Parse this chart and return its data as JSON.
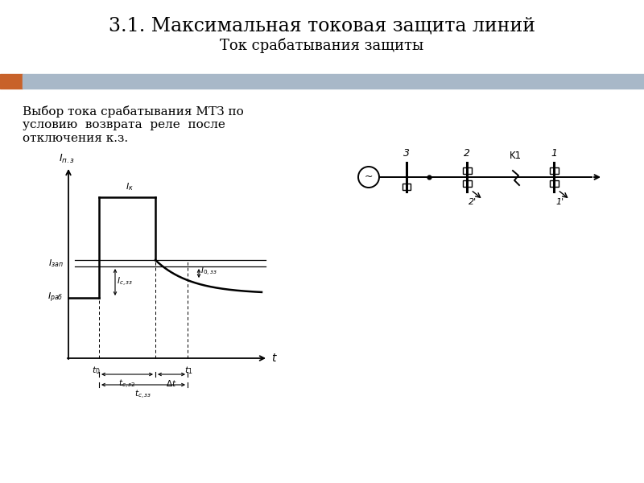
{
  "title": "3.1. Максимальная токовая защита линий",
  "subtitle": "Ток срабатывания защиты",
  "left_text_line1": "Выбор тока срабатывания МТЗ по",
  "left_text_line2": "условию  возврата  реле  после",
  "left_text_line3": "отключения к.з.",
  "header_bar_color": "#a8b8c8",
  "header_bar_left_color": "#c8622a",
  "fig_bg": "#ffffff"
}
